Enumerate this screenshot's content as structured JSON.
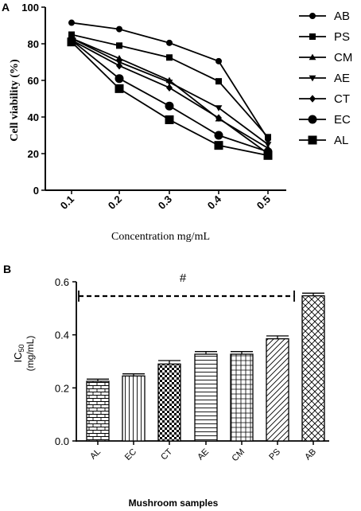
{
  "chart_data": [
    {
      "panel_label": "A",
      "type": "line",
      "x": [
        0.1,
        0.2,
        0.3,
        0.4,
        0.5
      ],
      "x_tick_labels": [
        "0.1",
        "0.2",
        "0.3",
        "0.4",
        "0.5"
      ],
      "xlabel": "Concentration mg/mL",
      "ylabel": "Cell viability (%)",
      "ylim": [
        0,
        100
      ],
      "y_ticks": [
        0,
        20,
        40,
        60,
        80,
        100
      ],
      "legend_position": "right",
      "series": [
        {
          "name": "AB",
          "marker": "circle",
          "values": [
            91.5,
            88,
            80.5,
            70.5,
            28
          ]
        },
        {
          "name": "PS",
          "marker": "square",
          "values": [
            85,
            79,
            72.5,
            59.5,
            29
          ]
        },
        {
          "name": "CM",
          "marker": "triangle-up",
          "values": [
            83,
            72,
            60,
            39,
            23
          ]
        },
        {
          "name": "AE",
          "marker": "triangle-down",
          "values": [
            83,
            70,
            59,
            45,
            25
          ]
        },
        {
          "name": "CT",
          "marker": "diamond",
          "values": [
            82,
            68,
            56,
            39.5,
            20
          ]
        },
        {
          "name": "EC",
          "marker": "circle",
          "values": [
            82,
            61,
            46,
            30,
            21
          ]
        },
        {
          "name": "AL",
          "marker": "square",
          "values": [
            81,
            55.5,
            38.5,
            24.5,
            19
          ]
        }
      ]
    },
    {
      "panel_label": "B",
      "type": "bar",
      "categories": [
        "AL",
        "EC",
        "CT",
        "AE",
        "CM",
        "PS",
        "AB"
      ],
      "values": [
        0.225,
        0.245,
        0.29,
        0.327,
        0.327,
        0.385,
        0.547
      ],
      "errors": [
        0.008,
        0.008,
        0.013,
        0.01,
        0.01,
        0.011,
        0.01
      ],
      "patterns": [
        "brick",
        "vertical",
        "checker",
        "horizontal",
        "grid",
        "diagonal",
        "crosshatch"
      ],
      "xlabel": "Mushroom samples",
      "ylabel_line1": "IC",
      "ylabel_sub": "50",
      "ylabel_line2": "(mg/mL)",
      "ylim": [
        0,
        0.6
      ],
      "y_ticks": [
        "0.0",
        "0.2",
        "0.4",
        "0.6"
      ],
      "annotation": "#"
    }
  ]
}
